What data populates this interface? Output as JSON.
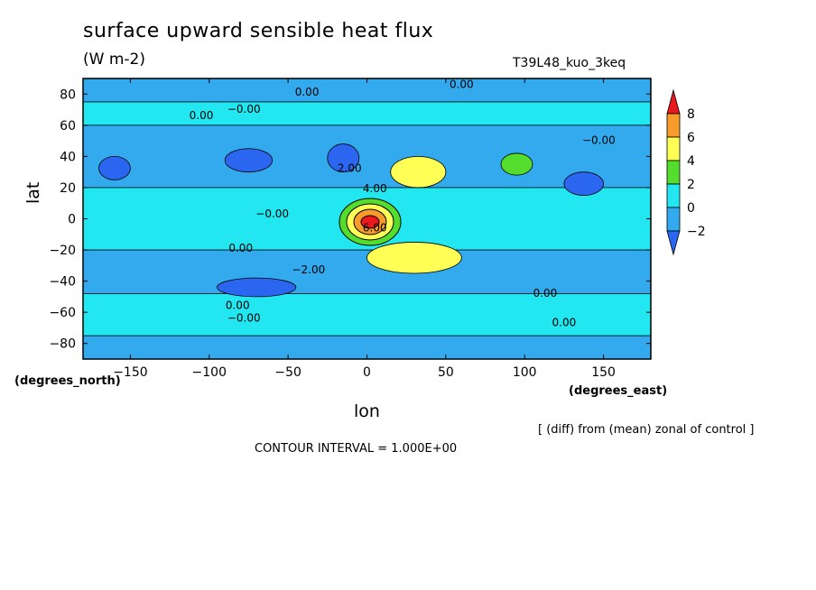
{
  "chart_data": {
    "type": "contour",
    "title": "surface upward sensible heat flux",
    "units": "(W m-2)",
    "run_id": "T39L48_kuo_3keq",
    "xlabel": "lon",
    "ylabel": "lat",
    "x_unit_label": "(degrees_east)",
    "y_unit_label": "(degrees_north)",
    "xlim": [
      -180,
      180
    ],
    "ylim": [
      -90,
      90
    ],
    "x_ticks": [
      -150,
      -100,
      -50,
      0,
      50,
      100,
      150
    ],
    "y_ticks": [
      80,
      60,
      40,
      20,
      0,
      -20,
      -40,
      -60,
      -80
    ],
    "colorbar": {
      "levels": [
        8,
        6,
        4,
        2,
        0,
        -2
      ],
      "colors": [
        "#e8181c",
        "#f79b2a",
        "#ffff55",
        "#55dd2e",
        "#22e6f0",
        "#33aaee",
        "#2a66f0"
      ]
    },
    "contour_labels": [
      "0.00",
      "-0.00",
      "2.00",
      "-2.00",
      "4.00",
      "6.00"
    ],
    "regions": [
      {
        "name": "cyan band north",
        "lon": [
          -180,
          180
        ],
        "lat": [
          60,
          75
        ],
        "value": 0.5
      },
      {
        "name": "cyan band south",
        "lon": [
          -180,
          180
        ],
        "lat": [
          -75,
          -48
        ],
        "value": 0.5
      },
      {
        "name": "cyan tropics",
        "lon": [
          -180,
          180
        ],
        "lat": [
          -20,
          20
        ],
        "value": 0.3
      },
      {
        "name": "blue patch NW",
        "lon": [
          -170,
          -150
        ],
        "lat": [
          25,
          40
        ],
        "value": -2.5
      },
      {
        "name": "blue patch N1",
        "lon": [
          -90,
          -60
        ],
        "lat": [
          30,
          45
        ],
        "value": -2.3
      },
      {
        "name": "blue patch N2",
        "lon": [
          -25,
          -5
        ],
        "lat": [
          30,
          48
        ],
        "value": -2.5
      },
      {
        "name": "blue patch NE",
        "lon": [
          125,
          150
        ],
        "lat": [
          15,
          30
        ],
        "value": -2.2
      },
      {
        "name": "blue patch SW",
        "lon": [
          -95,
          -45
        ],
        "lat": [
          -50,
          -38
        ],
        "value": -2.5
      },
      {
        "name": "yellow north",
        "lon": [
          15,
          50
        ],
        "lat": [
          20,
          40
        ],
        "value": 4.5
      },
      {
        "name": "yellow south",
        "lon": [
          0,
          60
        ],
        "lat": [
          -35,
          -15
        ],
        "value": 4.5
      },
      {
        "name": "green east",
        "lon": [
          85,
          105
        ],
        "lat": [
          28,
          42
        ],
        "value": 2.5
      },
      {
        "name": "maximum",
        "lon": [
          -10,
          15
        ],
        "lat": [
          -12,
          8
        ],
        "value": 8.5
      }
    ]
  },
  "note": "[ (diff) from (mean) zonal of control ]",
  "contour_interval": "CONTOUR INTERVAL = 1.000E+00"
}
